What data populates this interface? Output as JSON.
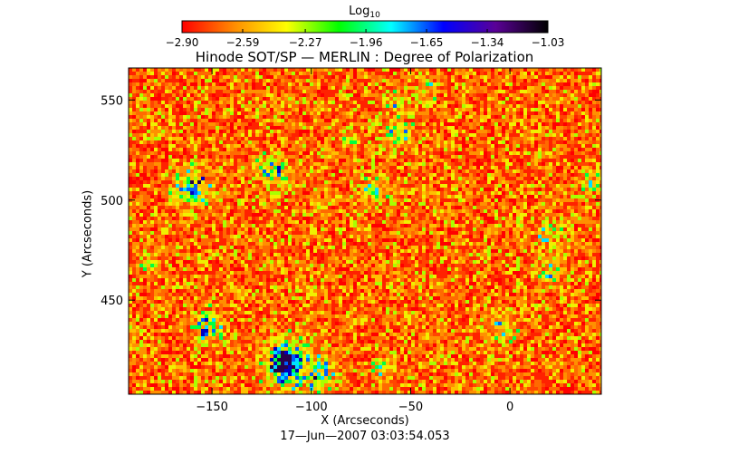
{
  "chart_data": {
    "type": "heatmap",
    "title": "Hinode SOT/SP — MERLIN : Degree of Polarization",
    "xlabel": "X (Arcseconds)",
    "ylabel": "Y (Arcseconds)",
    "timestamp": "17—Jun—2007 03:03:54.053",
    "xlim": [
      -192,
      46
    ],
    "ylim": [
      403,
      566
    ],
    "x_ticks": [
      -150,
      -100,
      -50,
      0
    ],
    "x_tick_labels": [
      "−150",
      "−100",
      "−50",
      "0"
    ],
    "y_ticks": [
      450,
      500,
      550
    ],
    "y_tick_labels": [
      "450",
      "500",
      "550"
    ],
    "colorbar": {
      "label": "Log",
      "label_subscript": "10",
      "range": [
        -2.9,
        -1.03
      ],
      "ticks": [
        -2.9,
        -2.59,
        -2.27,
        -1.96,
        -1.65,
        -1.34,
        -1.03
      ],
      "tick_labels": [
        "−2.90",
        "−2.59",
        "−2.27",
        "−1.96",
        "−1.65",
        "−1.34",
        "−1.03"
      ],
      "colormap": [
        "#ff0000",
        "#ff8c00",
        "#ffff00",
        "#00ff00",
        "#00ffff",
        "#0000ff",
        "#5a0096",
        "#000000"
      ]
    },
    "clusters": [
      {
        "x": -112,
        "y": 418,
        "strength": 1.0
      },
      {
        "x": -97,
        "y": 414,
        "strength": 0.7
      },
      {
        "x": -160,
        "y": 507,
        "strength": 0.7
      },
      {
        "x": -152,
        "y": 436,
        "strength": 0.55
      },
      {
        "x": -119,
        "y": 514,
        "strength": 0.55
      },
      {
        "x": -57,
        "y": 533,
        "strength": 0.5
      },
      {
        "x": -68,
        "y": 505,
        "strength": 0.45
      },
      {
        "x": -4,
        "y": 437,
        "strength": 0.45
      },
      {
        "x": 20,
        "y": 464,
        "strength": 0.4
      },
      {
        "x": 20,
        "y": 483,
        "strength": 0.4
      },
      {
        "x": -62,
        "y": 415,
        "strength": 0.35
      },
      {
        "x": -58,
        "y": 549,
        "strength": 0.35
      },
      {
        "x": -42,
        "y": 556,
        "strength": 0.3
      },
      {
        "x": 40,
        "y": 509,
        "strength": 0.35
      },
      {
        "x": -182,
        "y": 470,
        "strength": 0.3
      },
      {
        "x": -80,
        "y": 530,
        "strength": 0.3
      }
    ]
  }
}
